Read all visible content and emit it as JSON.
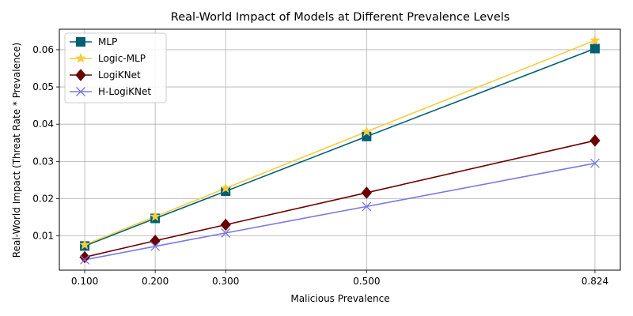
{
  "chart_data": {
    "type": "line",
    "title": "Real-World Impact of Models at Different Prevalence Levels",
    "xlabel": "Malicious Prevalence",
    "ylabel": "Real-World Impact (Threat Rate * Prevalence)",
    "x": [
      0.1,
      0.2,
      0.3,
      0.5,
      0.824
    ],
    "x_tick_labels": [
      "0.100",
      "0.200",
      "0.300",
      "0.500",
      "0.824"
    ],
    "y_ticks": [
      0.01,
      0.02,
      0.03,
      0.04,
      0.05,
      0.06
    ],
    "y_tick_labels": [
      "0.01",
      "0.02",
      "0.03",
      "0.04",
      "0.05",
      "0.06"
    ],
    "xlim": [
      0.064,
      0.86
    ],
    "ylim": [
      0.0008,
      0.0655
    ],
    "grid": true,
    "legend_position": "top-left",
    "series": [
      {
        "name": "MLP",
        "color": "#005f73",
        "marker": "square",
        "values": [
          0.0073,
          0.0147,
          0.022,
          0.0367,
          0.0603
        ]
      },
      {
        "name": "Logic-MLP",
        "color": "#f6cd3f",
        "marker": "star",
        "values": [
          0.0076,
          0.0152,
          0.0228,
          0.038,
          0.0625
        ]
      },
      {
        "name": "LogiKNet",
        "color": "#6a0000",
        "marker": "diamond",
        "values": [
          0.0043,
          0.0087,
          0.013,
          0.0216,
          0.0356
        ]
      },
      {
        "name": "H-LogiKNet",
        "color": "#7b78e3",
        "marker": "x",
        "values": [
          0.0036,
          0.0072,
          0.0108,
          0.0179,
          0.0295
        ]
      }
    ]
  }
}
